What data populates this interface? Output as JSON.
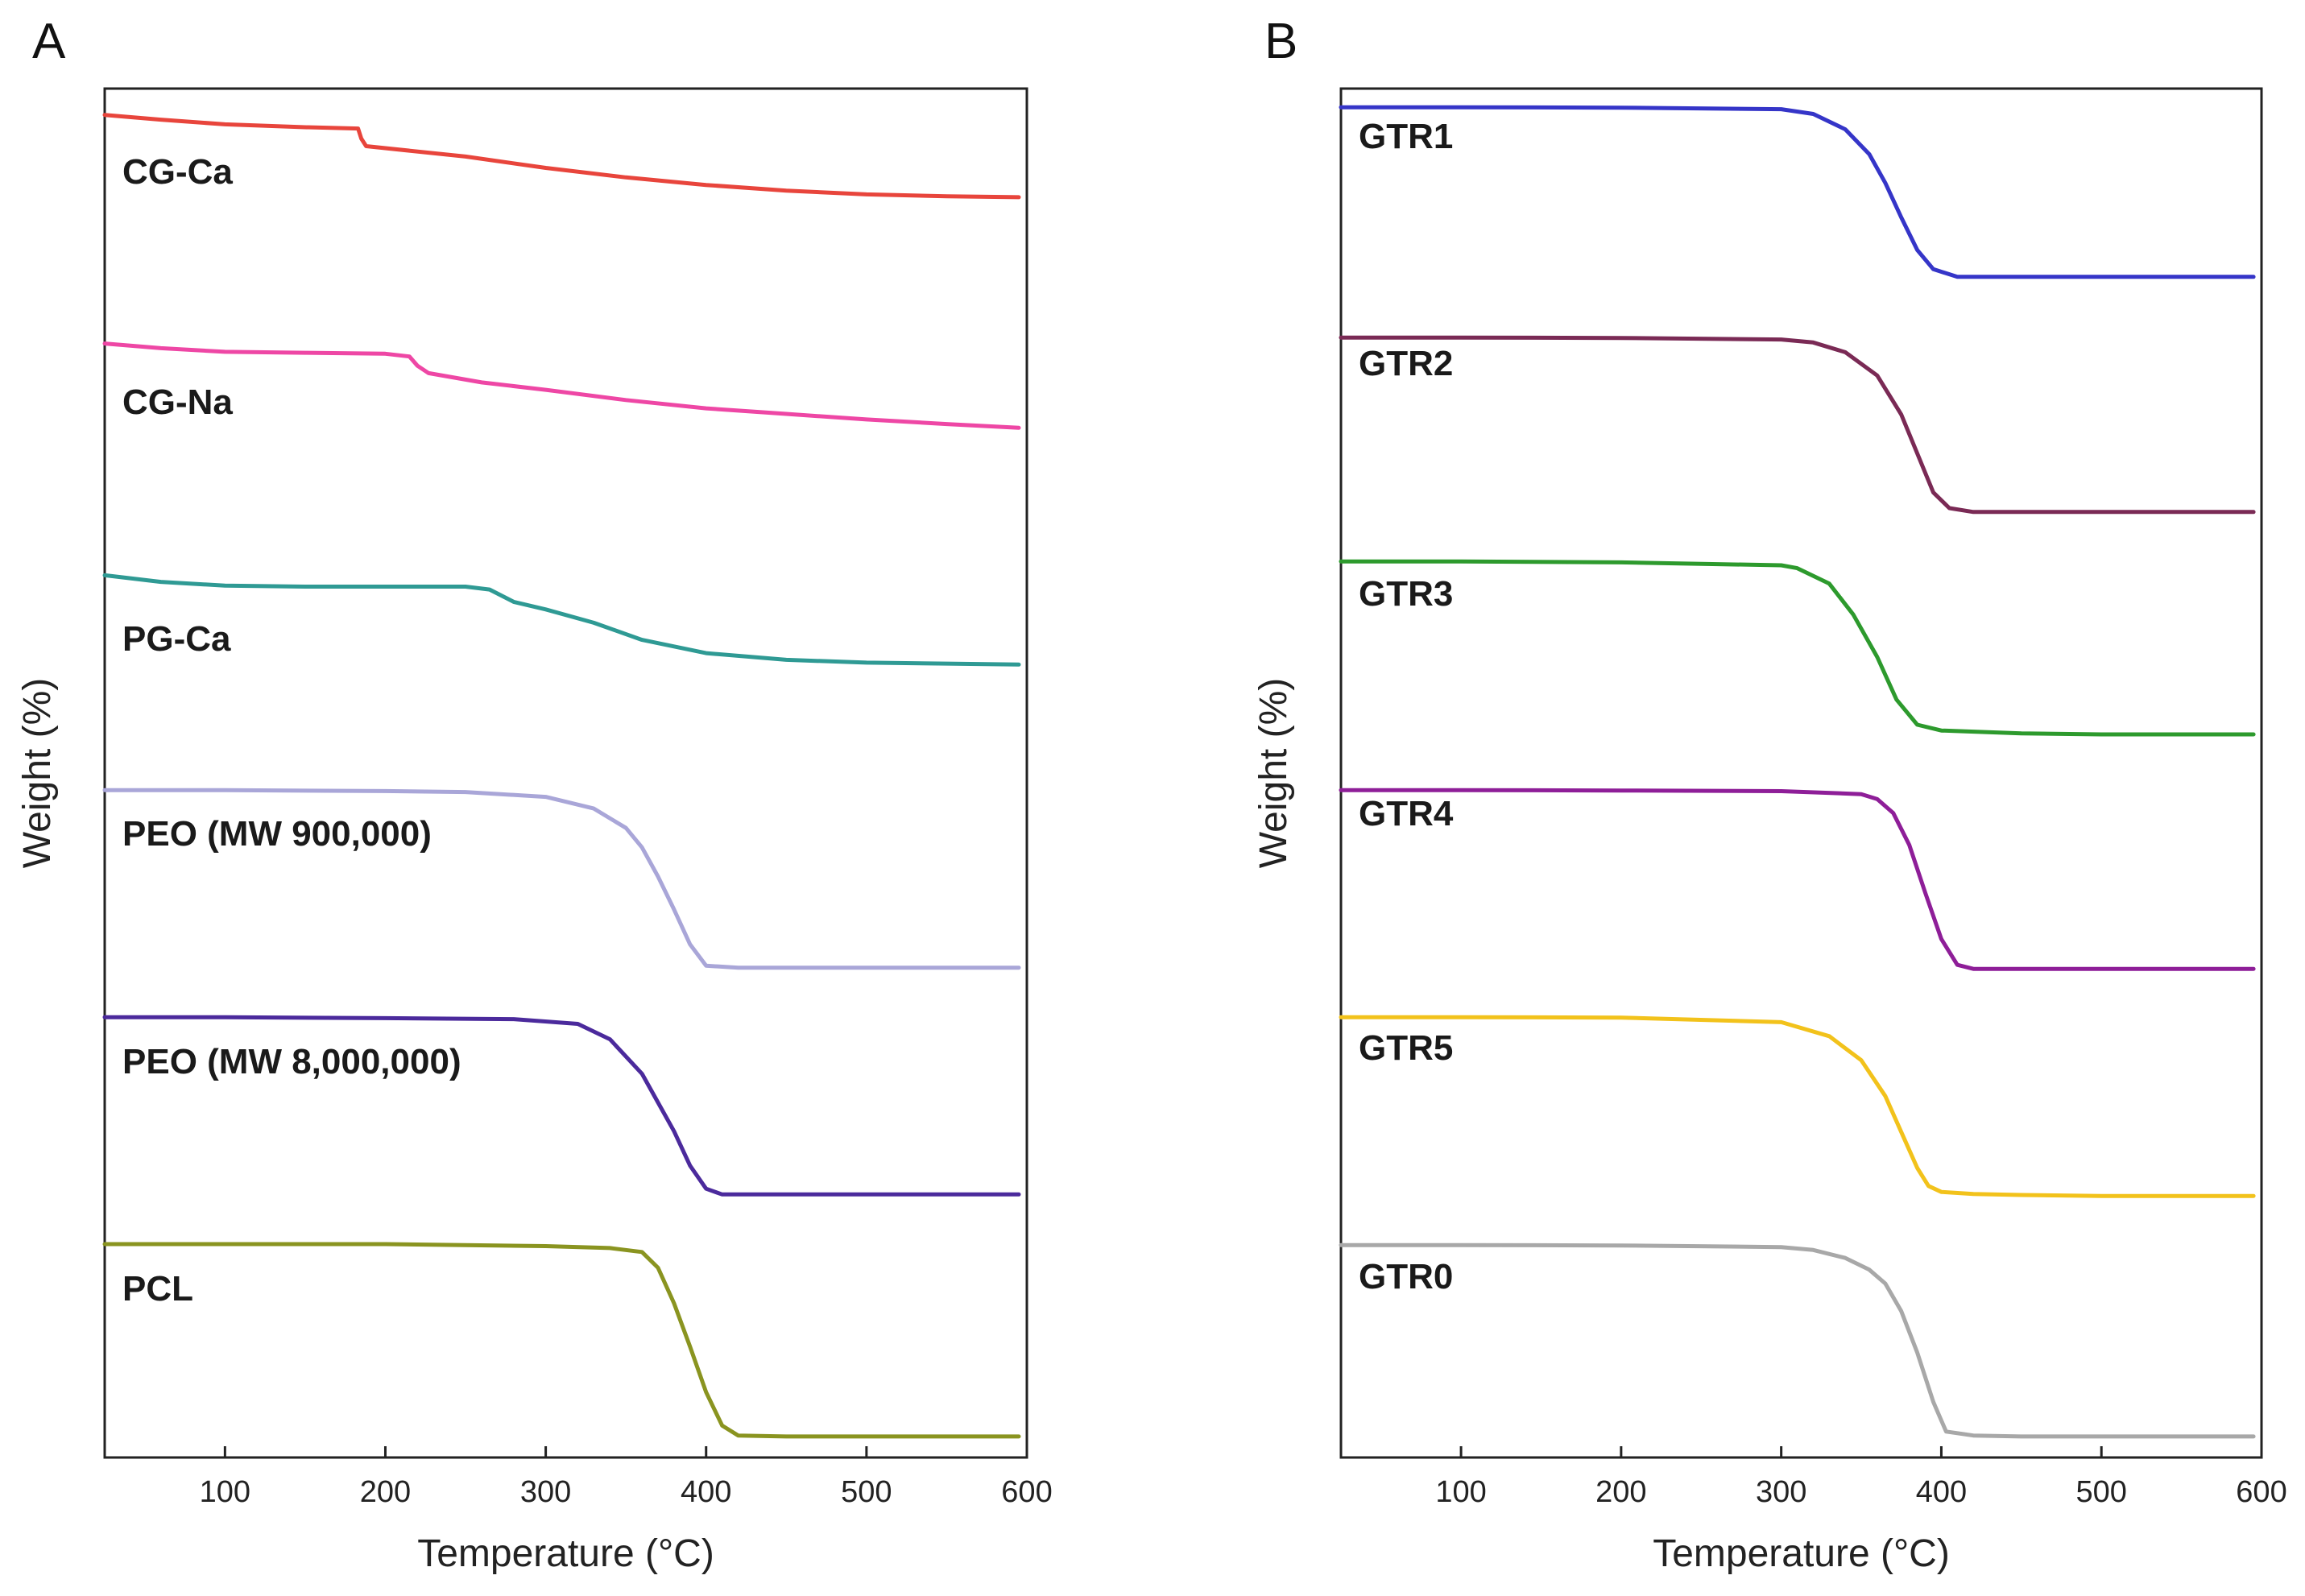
{
  "chart_data": [
    {
      "type": "line",
      "panel_label": "A",
      "xlabel": "Temperature (°C)",
      "ylabel": "Weight (%)",
      "xlim": [
        25,
        600
      ],
      "xticks": [
        100,
        200,
        300,
        400,
        500,
        600
      ],
      "y_axis_ticks": "none (curves offset vertically)",
      "series": [
        {
          "name": "CG-Ca",
          "color": "#e8453c",
          "x": [
            25,
            60,
            100,
            150,
            183,
            185,
            188,
            250,
            300,
            350,
            400,
            450,
            500,
            550,
            595
          ],
          "y": [
            98,
            95.5,
            93,
            91.5,
            90.8,
            85.5,
            81.5,
            76,
            70,
            65,
            61,
            58,
            56,
            55,
            54.5
          ]
        },
        {
          "name": "CG-Na",
          "color": "#ee47a5",
          "x": [
            25,
            60,
            100,
            150,
            200,
            215,
            220,
            227,
            260,
            300,
            350,
            400,
            450,
            500,
            550,
            595
          ],
          "y": [
            98,
            95.5,
            93.5,
            93,
            92.5,
            91,
            86,
            82,
            77,
            73,
            67.5,
            63,
            60,
            57,
            54.5,
            52.5
          ]
        },
        {
          "name": "PG-Ca",
          "color": "#2f9a94",
          "x": [
            25,
            60,
            100,
            150,
            200,
            250,
            265,
            280,
            300,
            330,
            360,
            400,
            450,
            500,
            550,
            595
          ],
          "y": [
            99,
            95.5,
            93.5,
            93,
            93,
            93,
            91.5,
            85,
            81,
            74,
            65,
            58,
            54.5,
            53,
            52.5,
            52
          ]
        },
        {
          "name": "PEO (MW 900,000)",
          "color": "#a9a6d8",
          "x": [
            25,
            100,
            200,
            250,
            300,
            330,
            350,
            360,
            370,
            380,
            390,
            400,
            420,
            450,
            500,
            595
          ],
          "y": [
            99.5,
            99.5,
            99,
            98.5,
            96,
            90,
            80,
            70,
            55,
            38,
            20,
            9,
            8,
            8,
            8,
            8
          ]
        },
        {
          "name": "PEO (MW 8,000,000)",
          "color": "#4b2a9c",
          "x": [
            25,
            100,
            200,
            280,
            320,
            340,
            360,
            370,
            380,
            390,
            400,
            410,
            450,
            500,
            595
          ],
          "y": [
            99.5,
            99.5,
            99,
            98.5,
            96,
            88,
            70,
            55,
            40,
            22,
            10,
            7,
            7,
            7,
            7
          ]
        },
        {
          "name": "PCL",
          "color": "#8a9420",
          "x": [
            25,
            100,
            200,
            300,
            340,
            360,
            370,
            380,
            390,
            400,
            410,
            420,
            450,
            500,
            595
          ],
          "y": [
            100,
            100,
            100,
            99,
            98,
            96,
            88,
            70,
            48,
            25,
            8,
            3,
            2.5,
            2.5,
            2.5
          ]
        }
      ]
    },
    {
      "type": "line",
      "panel_label": "B",
      "xlabel": "Temperature (°C)",
      "ylabel": "Weight (%)",
      "xlim": [
        25,
        600
      ],
      "xticks": [
        100,
        200,
        300,
        400,
        500,
        600
      ],
      "y_axis_ticks": "none (curves offset vertically)",
      "series": [
        {
          "name": "GTR1",
          "color": "#3535c8",
          "x": [
            25,
            100,
            200,
            300,
            320,
            340,
            355,
            365,
            375,
            385,
            395,
            410,
            450,
            500,
            595
          ],
          "y": [
            99.5,
            99.5,
            99.3,
            98.5,
            96,
            88,
            75,
            60,
            42,
            25,
            15,
            11,
            11,
            11,
            11
          ]
        },
        {
          "name": "GTR2",
          "color": "#7a2a55",
          "x": [
            25,
            100,
            200,
            300,
            320,
            340,
            360,
            375,
            385,
            395,
            405,
            420,
            450,
            500,
            595
          ],
          "y": [
            99.5,
            99.5,
            99.3,
            98.5,
            97,
            92,
            80,
            60,
            40,
            20,
            12,
            10,
            10,
            10,
            10
          ]
        },
        {
          "name": "GTR3",
          "color": "#2d9a2d",
          "x": [
            25,
            100,
            200,
            300,
            310,
            330,
            345,
            360,
            372,
            385,
            400,
            450,
            500,
            595
          ],
          "y": [
            99.5,
            99.5,
            99,
            97.5,
            96,
            88,
            72,
            50,
            28,
            15,
            12,
            10.5,
            10,
            10
          ]
        },
        {
          "name": "GTR4",
          "color": "#8e1e98",
          "x": [
            25,
            100,
            200,
            300,
            350,
            360,
            370,
            380,
            390,
            400,
            410,
            420,
            450,
            500,
            595
          ],
          "y": [
            99.5,
            99.5,
            99.3,
            99,
            97.5,
            95,
            88,
            72,
            48,
            25,
            12,
            10,
            10,
            10,
            10
          ]
        },
        {
          "name": "GTR5",
          "color": "#f2c21b",
          "x": [
            25,
            100,
            200,
            300,
            330,
            350,
            365,
            375,
            385,
            392,
            400,
            420,
            450,
            500,
            595
          ],
          "y": [
            99.5,
            99.5,
            99.3,
            97,
            90,
            78,
            60,
            42,
            24,
            15,
            12,
            11,
            10.5,
            10,
            10
          ]
        },
        {
          "name": "GTR0",
          "color": "#a8a8a8",
          "x": [
            25,
            100,
            200,
            300,
            320,
            340,
            355,
            365,
            375,
            385,
            395,
            403,
            420,
            450,
            500,
            595
          ],
          "y": [
            99.5,
            99.5,
            99.3,
            98.5,
            97,
            93,
            87,
            80,
            66,
            45,
            20,
            5,
            3,
            2.5,
            2.5,
            2.5
          ]
        }
      ]
    }
  ]
}
